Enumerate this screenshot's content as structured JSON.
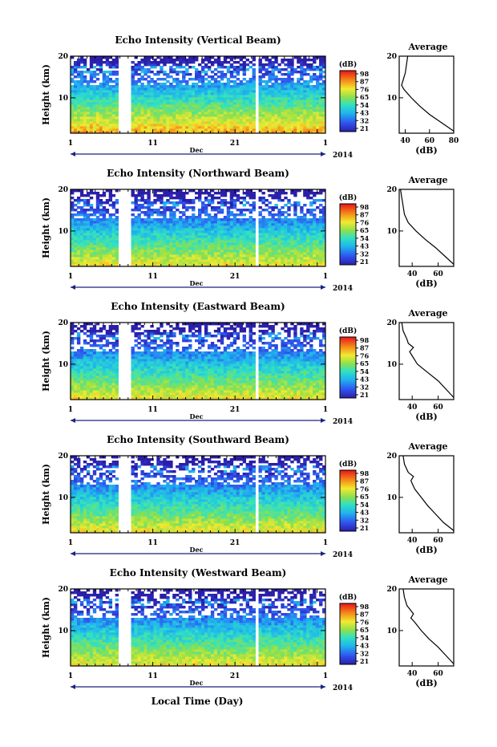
{
  "figure": {
    "x_title": "Local Time (Day)",
    "month_label": "Dec",
    "year_label": "2014"
  },
  "chart_data": [
    {
      "type": "heatmap",
      "title": "Echo Intensity (Vertical Beam)",
      "ylabel": "Height (km)",
      "ylim": [
        1.5,
        20
      ],
      "y_ticks": [
        "10",
        "20"
      ],
      "x_ticks": [
        "1",
        "11",
        "21",
        "1"
      ],
      "xlim_days": [
        1,
        32
      ],
      "missing_days": [
        [
          6.8,
          8.2
        ],
        [
          23.3,
          23.9
        ],
        [
          30.3,
          30.6
        ]
      ],
      "colorbar": {
        "unit": "(dB)",
        "labels": [
          "21",
          "32",
          "43",
          "54",
          "65",
          "76",
          "87",
          "98"
        ]
      },
      "average_profile": {
        "title": "Average",
        "xlabel": "(dB)",
        "x_ticks": [
          "40",
          "60",
          "80"
        ],
        "xlim": [
          35,
          80
        ],
        "ylim": [
          1.5,
          20
        ],
        "y_ticks": [
          "10",
          "20"
        ],
        "height_km": [
          2,
          4,
          6,
          8,
          10,
          12,
          13,
          14,
          16,
          18,
          20
        ],
        "db": [
          80,
          70,
          60,
          52,
          45,
          39,
          37,
          38,
          40,
          41,
          42
        ]
      }
    },
    {
      "type": "heatmap",
      "title": "Echo Intensity (Northward Beam)",
      "ylabel": "Height (km)",
      "ylim": [
        1.5,
        20
      ],
      "y_ticks": [
        "10",
        "20"
      ],
      "x_ticks": [
        "1",
        "11",
        "21",
        "1"
      ],
      "xlim_days": [
        1,
        32
      ],
      "missing_days": [
        [
          6.8,
          8.2
        ],
        [
          23.3,
          23.9
        ],
        [
          30.3,
          30.6
        ]
      ],
      "colorbar": {
        "unit": "(dB)",
        "labels": [
          "21",
          "32",
          "43",
          "54",
          "65",
          "76",
          "87",
          "98"
        ]
      },
      "average_profile": {
        "title": "Average",
        "xlabel": "(dB)",
        "x_ticks": [
          "40",
          "60"
        ],
        "xlim": [
          30,
          72
        ],
        "ylim": [
          1.5,
          20
        ],
        "y_ticks": [
          "10",
          "20"
        ],
        "height_km": [
          2,
          4,
          6,
          8,
          10,
          12,
          14,
          16,
          18,
          20
        ],
        "db": [
          72,
          65,
          58,
          50,
          43,
          37,
          34,
          33,
          32,
          31
        ]
      }
    },
    {
      "type": "heatmap",
      "title": "Echo Intensity (Eastward Beam)",
      "ylabel": "Height (km)",
      "ylim": [
        1.5,
        20
      ],
      "y_ticks": [
        "10",
        "20"
      ],
      "x_ticks": [
        "1",
        "11",
        "21",
        "1"
      ],
      "xlim_days": [
        1,
        32
      ],
      "missing_days": [
        [
          6.8,
          8.2
        ],
        [
          23.3,
          23.9
        ],
        [
          30.3,
          30.6
        ]
      ],
      "colorbar": {
        "unit": "(dB)",
        "labels": [
          "21",
          "32",
          "43",
          "54",
          "65",
          "76",
          "87",
          "98"
        ]
      },
      "average_profile": {
        "title": "Average",
        "xlabel": "(dB)",
        "x_ticks": [
          "40",
          "60"
        ],
        "xlim": [
          30,
          72
        ],
        "ylim": [
          1.5,
          20
        ],
        "y_ticks": [
          "10",
          "20"
        ],
        "height_km": [
          2,
          4,
          6,
          8,
          10,
          12,
          13,
          14,
          15,
          16,
          18,
          20
        ],
        "db": [
          72,
          66,
          60,
          52,
          44,
          40,
          38,
          41,
          37,
          36,
          33,
          32
        ]
      }
    },
    {
      "type": "heatmap",
      "title": "Echo Intensity (Southward Beam)",
      "ylabel": "Height (km)",
      "ylim": [
        1.5,
        20
      ],
      "y_ticks": [
        "10",
        "20"
      ],
      "x_ticks": [
        "1",
        "11",
        "21",
        "1"
      ],
      "xlim_days": [
        1,
        32
      ],
      "missing_days": [
        [
          6.8,
          8.2
        ],
        [
          23.3,
          23.9
        ],
        [
          30.3,
          30.6
        ]
      ],
      "colorbar": {
        "unit": "(dB)",
        "labels": [
          "21",
          "32",
          "43",
          "54",
          "65",
          "76",
          "87",
          "98"
        ]
      },
      "average_profile": {
        "title": "Average",
        "xlabel": "(dB)",
        "x_ticks": [
          "40",
          "60"
        ],
        "xlim": [
          30,
          72
        ],
        "ylim": [
          1.5,
          20
        ],
        "y_ticks": [
          "10",
          "20"
        ],
        "height_km": [
          2,
          4,
          6,
          8,
          10,
          12,
          14,
          15,
          16,
          18,
          20
        ],
        "db": [
          72,
          64,
          58,
          52,
          47,
          42,
          39,
          41,
          37,
          34,
          33
        ]
      }
    },
    {
      "type": "heatmap",
      "title": "Echo Intensity (Westward Beam)",
      "ylabel": "Height (km)",
      "ylim": [
        1.5,
        20
      ],
      "y_ticks": [
        "10",
        "20"
      ],
      "x_ticks": [
        "1",
        "11",
        "21",
        "1"
      ],
      "xlim_days": [
        1,
        32
      ],
      "missing_days": [
        [
          6.8,
          8.2
        ],
        [
          23.3,
          23.9
        ],
        [
          30.3,
          30.6
        ]
      ],
      "colorbar": {
        "unit": "(dB)",
        "labels": [
          "21",
          "32",
          "43",
          "54",
          "65",
          "76",
          "87",
          "98"
        ]
      },
      "average_profile": {
        "title": "Average",
        "xlabel": "(dB)",
        "x_ticks": [
          "40",
          "60"
        ],
        "xlim": [
          30,
          72
        ],
        "ylim": [
          1.5,
          20
        ],
        "y_ticks": [
          "10",
          "20"
        ],
        "height_km": [
          2,
          4,
          6,
          8,
          10,
          12,
          13,
          14,
          16,
          18,
          20
        ],
        "db": [
          72,
          66,
          60,
          53,
          47,
          42,
          39,
          41,
          36,
          34,
          33
        ]
      }
    }
  ]
}
